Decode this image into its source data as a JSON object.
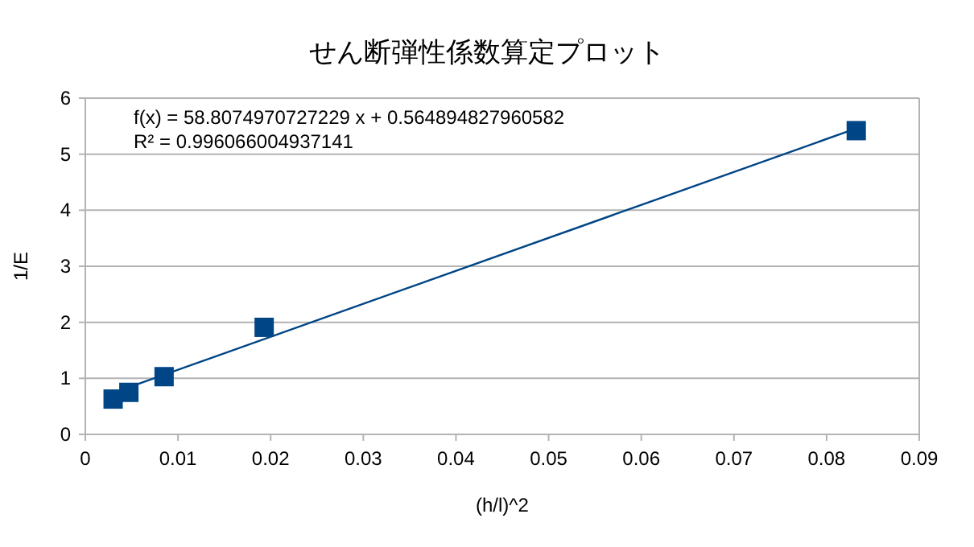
{
  "chart_data": {
    "type": "scatter",
    "title": "せん断弾性係数算定プロット",
    "xlabel": "(h/l)^2",
    "ylabel": "1/E",
    "annotations": [
      "f(x) = 58.8074970727229 x + 0.564894827960582",
      "R² = 0.996066004937141"
    ],
    "xlim": [
      0,
      0.09
    ],
    "xticks": [
      0,
      0.01,
      0.02,
      0.03,
      0.04,
      0.05,
      0.06,
      0.07,
      0.08,
      0.09
    ],
    "ylim": [
      0,
      6
    ],
    "yticks": [
      0,
      1,
      2,
      3,
      4,
      5,
      6
    ],
    "grid": "y",
    "series": [
      {
        "marker": "square",
        "color": "#004586",
        "x": [
          0.003,
          0.0047,
          0.0085,
          0.0193,
          0.0832
        ],
        "values": [
          0.63,
          0.75,
          1.03,
          1.91,
          5.42
        ]
      },
      {
        "type": "line",
        "marker": "none",
        "color": "#004586",
        "x": [
          0.003,
          0.0832
        ],
        "values": [
          0.74,
          5.46
        ]
      }
    ]
  }
}
